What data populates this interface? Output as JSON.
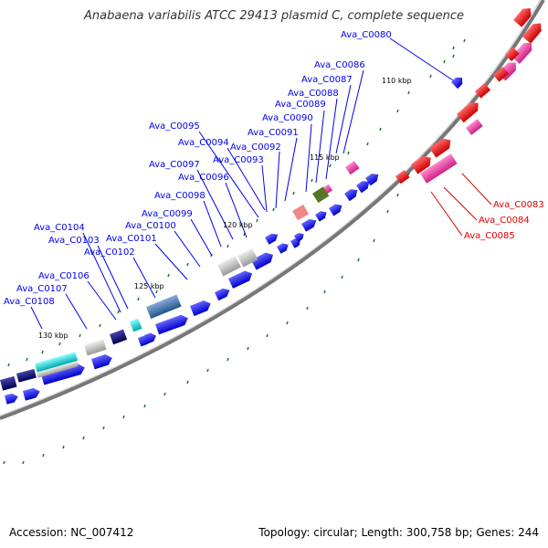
{
  "title": "Anabaena variabilis ATCC 29413 plasmid C, complete sequence",
  "accession": "Accession: NC_007412",
  "summary": "Topology: circular; Length: 300,758 bp; Genes: 244",
  "colors": {
    "backbone": "#888888",
    "forward": "#0000ee",
    "reverse_red": "#ee0000",
    "magenta": "#ee44aa",
    "cyan": "#00cccc",
    "navy": "#000077",
    "steel": "#4477aa",
    "gray": "#bbbbbb",
    "olive": "#557722",
    "pink": "#ee7777",
    "tick_green": "#227722",
    "label_blue": "#0000ee",
    "label_red": "#dd0000"
  },
  "scale_ticks": [
    {
      "label": "110 kbp"
    },
    {
      "label": "115 kbp"
    },
    {
      "label": "120 kbp"
    },
    {
      "label": "125 kbp"
    },
    {
      "label": "130 kbp"
    }
  ],
  "gene_labels": [
    {
      "id": "Ava_C0080",
      "text": "Ava_C0080",
      "side": "blue"
    },
    {
      "id": "Ava_C0083",
      "text": "Ava_C0083",
      "side": "red"
    },
    {
      "id": "Ava_C0084",
      "text": "Ava_C0084",
      "side": "red"
    },
    {
      "id": "Ava_C0085",
      "text": "Ava_C0085",
      "side": "red"
    },
    {
      "id": "Ava_C0086",
      "text": "Ava_C0086",
      "side": "blue"
    },
    {
      "id": "Ava_C0087",
      "text": "Ava_C0087",
      "side": "blue"
    },
    {
      "id": "Ava_C0088",
      "text": "Ava_C0088",
      "side": "blue"
    },
    {
      "id": "Ava_C0089",
      "text": "Ava_C0089",
      "side": "blue"
    },
    {
      "id": "Ava_C0090",
      "text": "Ava_C0090",
      "side": "blue"
    },
    {
      "id": "Ava_C0091",
      "text": "Ava_C0091",
      "side": "blue"
    },
    {
      "id": "Ava_C0092",
      "text": "Ava_C0092",
      "side": "blue"
    },
    {
      "id": "Ava_C0093",
      "text": "Ava_C0093",
      "side": "blue"
    },
    {
      "id": "Ava_C0094",
      "text": "Ava_C0094",
      "side": "blue"
    },
    {
      "id": "Ava_C0095",
      "text": "Ava_C0095",
      "side": "blue"
    },
    {
      "id": "Ava_C0096",
      "text": "Ava_C0096",
      "side": "blue"
    },
    {
      "id": "Ava_C0097",
      "text": "Ava_C0097",
      "side": "blue"
    },
    {
      "id": "Ava_C0098",
      "text": "Ava_C0098",
      "side": "blue"
    },
    {
      "id": "Ava_C0099",
      "text": "Ava_C0099",
      "side": "blue"
    },
    {
      "id": "Ava_C0100",
      "text": "Ava_C0100",
      "side": "blue"
    },
    {
      "id": "Ava_C0101",
      "text": "Ava_C0101",
      "side": "blue"
    },
    {
      "id": "Ava_C0102",
      "text": "Ava_C0102",
      "side": "blue"
    },
    {
      "id": "Ava_C0103",
      "text": "Ava_C0103",
      "side": "blue"
    },
    {
      "id": "Ava_C0104",
      "text": "Ava_C0104",
      "side": "blue"
    },
    {
      "id": "Ava_C0106",
      "text": "Ava_C0106",
      "side": "blue"
    },
    {
      "id": "Ava_C0107",
      "text": "Ava_C0107",
      "side": "blue"
    },
    {
      "id": "Ava_C0108",
      "text": "Ava_C0108",
      "side": "blue"
    }
  ]
}
